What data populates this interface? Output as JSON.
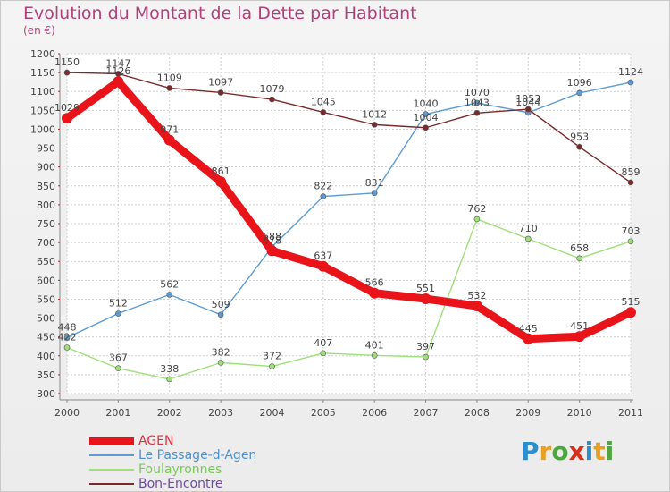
{
  "header": {
    "title": "Evolution du Montant de la Dette par Habitant",
    "subtitle": "(en €)"
  },
  "logo": {
    "text": "Proxiti",
    "letter_colors": [
      "#2a8fcf",
      "#e8a020",
      "#4aa83c",
      "#d8301c",
      "#2a8fcf",
      "#e8a020",
      "#4aa83c"
    ]
  },
  "colors": {
    "title": "#b4407a",
    "grid": "#cfcfcf",
    "axis": "#555555",
    "label_text": "#444444"
  },
  "chart_data": {
    "type": "line",
    "title": "Evolution du Montant de la Dette par Habitant",
    "ylabel": "(en €)",
    "xlabel": "",
    "x": [
      "2000",
      "2001",
      "2002",
      "2003",
      "2004",
      "2005",
      "2006",
      "2007",
      "2008",
      "2009",
      "2010",
      "2011"
    ],
    "ylim": [
      300,
      1200
    ],
    "ytick_step": 50,
    "grid": true,
    "legend_position": "bottom-left",
    "series": [
      {
        "name": "AGEN",
        "color": "#e8141a",
        "weight": "heavy",
        "values": [
          1029,
          1126,
          971,
          861,
          678,
          637,
          566,
          551,
          532,
          445,
          451,
          515
        ]
      },
      {
        "name": "Le Passage-d-Agen",
        "color": "#5c9bd4",
        "weight": "thin",
        "values": [
          448,
          512,
          562,
          509,
          688,
          822,
          831,
          1040,
          1070,
          1044,
          1096,
          1124
        ]
      },
      {
        "name": "Foulayronnes",
        "color": "#9ee07a",
        "weight": "thin",
        "values": [
          422,
          367,
          338,
          382,
          372,
          407,
          401,
          397,
          762,
          710,
          658,
          703
        ]
      },
      {
        "name": "Bon-Encontre",
        "color": "#7a2a2a",
        "weight": "thin",
        "values": [
          1150,
          1147,
          1109,
          1097,
          1079,
          1045,
          1012,
          1004,
          1043,
          1053,
          953,
          859
        ]
      }
    ]
  }
}
